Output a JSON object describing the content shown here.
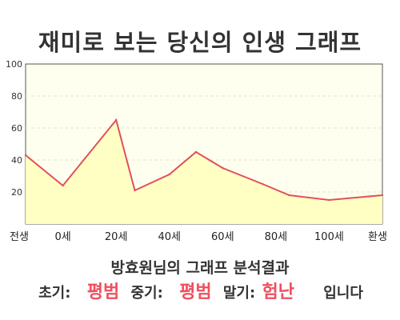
{
  "title": "재미로 보는 당신의 인생 그래프",
  "chart_data": {
    "type": "area",
    "title": "재미로 보는 당신의 인생 그래프",
    "xlabel": "",
    "ylabel": "",
    "ylim": [
      0,
      100
    ],
    "yticks": [
      20,
      40,
      60,
      80,
      100
    ],
    "grid": true,
    "x_tick_labels": [
      "전생",
      "0세",
      "20세",
      "40세",
      "60세",
      "80세",
      "100세",
      "환생"
    ],
    "points": [
      {
        "x": "전생",
        "y": 43
      },
      {
        "x": "0세",
        "y": 24
      },
      {
        "x": "20세",
        "y": 65
      },
      {
        "x": "27세",
        "y": 21
      },
      {
        "x": "40세",
        "y": 31
      },
      {
        "x": "50세",
        "y": 45
      },
      {
        "x": "60세",
        "y": 35
      },
      {
        "x": "75세",
        "y": 25
      },
      {
        "x": "85세",
        "y": 18
      },
      {
        "x": "100세",
        "y": 15
      },
      {
        "x": "환생",
        "y": 18
      }
    ],
    "line_color": "#e0505a",
    "fill_color": "#ffffc4",
    "plot_background": "#fffff0"
  },
  "footer": {
    "name_line": "방효원님의 그래프 분석결과",
    "early_label": "초기:",
    "early_value": "평범",
    "middle_label": "중기:",
    "middle_value": "평범",
    "late_label": "말기:",
    "late_value": "험난",
    "ending": "입니다",
    "highlight_color": "#ef4f5f"
  }
}
